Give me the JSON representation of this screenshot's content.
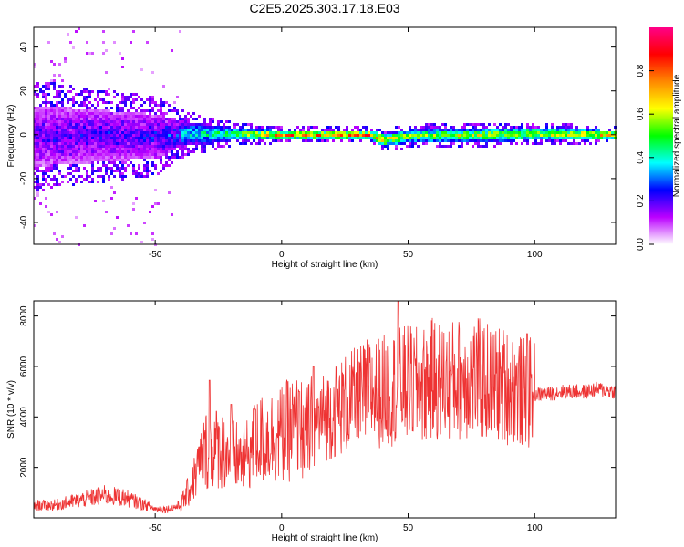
{
  "title": "C2E5.2025.303.17.18.E03",
  "chart_data": [
    {
      "type": "heatmap",
      "xlabel": "Height of straight line (km)",
      "ylabel": "Frequency (Hz)",
      "xlim": [
        -98,
        132
      ],
      "ylim": [
        -50,
        49
      ],
      "xticks": [
        -50,
        0,
        50,
        100
      ],
      "yticks": [
        -40,
        -20,
        0,
        20,
        40
      ],
      "colorbar": {
        "label": "Normalized spectral amplitude",
        "range": [
          0,
          1
        ],
        "ticks": [
          "0.0",
          "0.2",
          "0.4",
          "0.6",
          "0.8"
        ],
        "tick_values": [
          0,
          0.2,
          0.4,
          0.6,
          0.8
        ],
        "colors": [
          "#ffffff",
          "#bb00ff",
          "#0000ff",
          "#00ffff",
          "#00ff00",
          "#ffff00",
          "#ff8800",
          "#ff0000",
          "#ff0088"
        ]
      },
      "ridge": [
        {
          "x": -98,
          "f": 0,
          "width": 14,
          "amp": 0.3
        },
        {
          "x": -50,
          "f": 0,
          "width": 10,
          "amp": 0.35
        },
        {
          "x": -40,
          "f": 1,
          "width": 6,
          "amp": 0.45
        },
        {
          "x": -20,
          "f": 1,
          "width": 3,
          "amp": 0.6
        },
        {
          "x": 0,
          "f": 0.5,
          "width": 2,
          "amp": 0.95
        },
        {
          "x": 35,
          "f": 0.5,
          "width": 2,
          "amp": 0.95
        },
        {
          "x": 40,
          "f": -2,
          "width": 3,
          "amp": 0.8
        },
        {
          "x": 50,
          "f": 0,
          "width": 3,
          "amp": 0.7
        },
        {
          "x": 100,
          "f": 1,
          "width": 3,
          "amp": 0.75
        },
        {
          "x": 132,
          "f": 0.5,
          "width": 2,
          "amp": 0.9
        }
      ]
    },
    {
      "type": "line",
      "xlabel": "Height of straight line (km)",
      "ylabel": "SNR (10 * v/v)",
      "xlim": [
        -98,
        132
      ],
      "ylim": [
        0,
        8600
      ],
      "xticks": [
        -50,
        0,
        50,
        100
      ],
      "yticks": [
        2000,
        4000,
        6000,
        8000
      ],
      "color": "#ee3333",
      "x": [
        -98,
        -90,
        -80,
        -70,
        -62,
        -55,
        -50,
        -45,
        -40,
        -36,
        -33,
        -30,
        -25,
        -20,
        -15,
        -10,
        -5,
        0,
        5,
        10,
        15,
        20,
        25,
        30,
        35,
        40,
        45,
        50,
        55,
        60,
        65,
        70,
        75,
        80,
        85,
        90,
        95,
        100,
        105,
        110,
        115,
        120,
        125,
        132
      ],
      "y": [
        500,
        500,
        700,
        900,
        800,
        550,
        350,
        350,
        500,
        1200,
        2000,
        2700,
        2800,
        2500,
        2300,
        3000,
        3200,
        3300,
        3600,
        3400,
        3900,
        4200,
        4500,
        4700,
        5000,
        5000,
        5200,
        5300,
        5200,
        5500,
        5400,
        5500,
        5600,
        5400,
        5300,
        5200,
        5000,
        4900,
        4900,
        5000,
        5000,
        5000,
        5100,
        5000
      ],
      "spikes": [
        {
          "x": -28.5,
          "y": 5450
        },
        {
          "x": -20,
          "y": 4500
        },
        {
          "x": -10.5,
          "y": 4300
        },
        {
          "x": 7,
          "y": 5000
        },
        {
          "x": 12.5,
          "y": 6000
        },
        {
          "x": 46,
          "y": 8600
        },
        {
          "x": 97,
          "y": 7300
        }
      ]
    }
  ]
}
